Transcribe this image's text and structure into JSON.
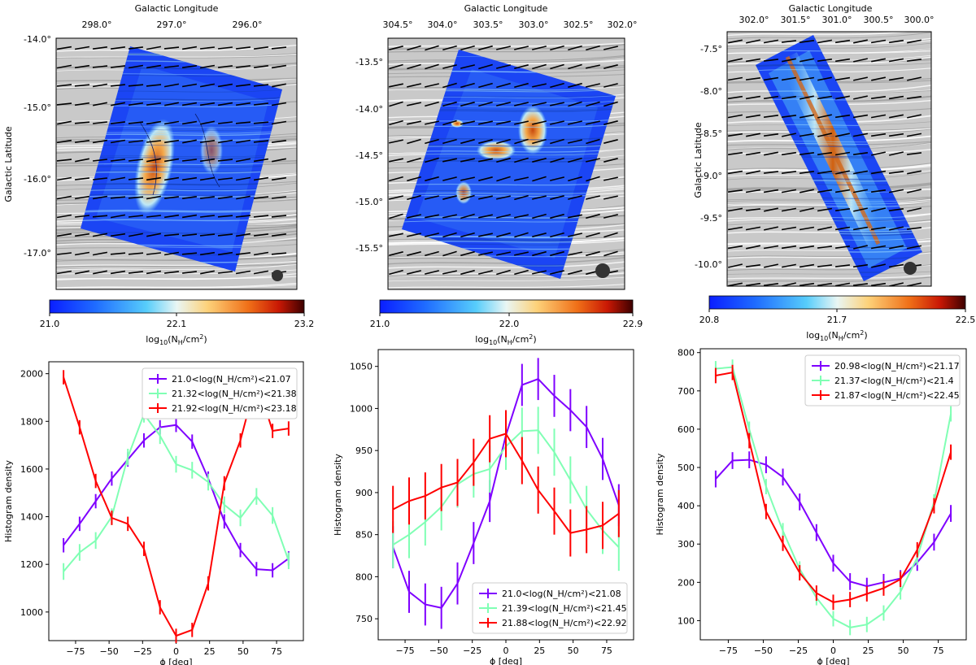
{
  "chart_data": [
    {
      "type": "heatmap",
      "panel": "map-1",
      "xlabel": "Galactic Longitude",
      "ylabel": "Galactic Latitude",
      "xticks": [
        "298.0°",
        "297.0°",
        "296.0°"
      ],
      "yticks": [
        "-14.0°",
        "-15.0°",
        "-16.0°",
        "-17.0°"
      ],
      "colorbar": {
        "label": "log$_{10}$(N$_H$/cm$^2$)",
        "label_main": "log",
        "label_sub1": "10",
        "label_mid": "(N",
        "label_sub2": "H",
        "label_end": "/cm",
        "label_sup": "2",
        "label_close": ")",
        "min": 21.0,
        "mid": 22.1,
        "max": 23.2,
        "ticks": [
          "21.0",
          "22.1",
          "23.2"
        ]
      }
    },
    {
      "type": "heatmap",
      "panel": "map-2",
      "xlabel": "Galactic Longitude",
      "ylabel": "",
      "xticks": [
        "304.5°",
        "304.0°",
        "303.5°",
        "303.0°",
        "302.5°",
        "302.0°"
      ],
      "yticks": [
        "-13.5°",
        "-14.0°",
        "-14.5°",
        "-15.0°",
        "-15.5°"
      ],
      "colorbar": {
        "min": 21.0,
        "mid": 22.0,
        "max": 22.9,
        "ticks": [
          "21.0",
          "22.0",
          "22.9"
        ]
      }
    },
    {
      "type": "heatmap",
      "panel": "map-3",
      "xlabel": "Galactic Longitude",
      "ylabel": "Galactic Latitude",
      "xticks": [
        "302.0°",
        "301.5°",
        "301.0°",
        "300.5°",
        "300.0°"
      ],
      "yticks": [
        "-7.5°",
        "-8.0°",
        "-8.5°",
        "-9.0°",
        "-9.5°",
        "-10.0°"
      ],
      "colorbar": {
        "min": 20.8,
        "mid": 21.7,
        "max": 22.5,
        "ticks": [
          "20.8",
          "21.7",
          "22.5"
        ]
      }
    },
    {
      "type": "line",
      "panel": "hist-1",
      "xlabel": "ϕ [deg]",
      "ylabel": "Histogram density",
      "xlim": [
        -95,
        95
      ],
      "ylim": [
        880,
        2050
      ],
      "xticks": [
        -75,
        -50,
        -25,
        0,
        25,
        50,
        75
      ],
      "yticks": [
        1000,
        1200,
        1400,
        1600,
        1800,
        2000
      ],
      "x": [
        -84,
        -72,
        -60,
        -48,
        -36,
        -24,
        -12,
        0,
        12,
        24,
        36,
        48,
        60,
        72,
        84
      ],
      "legend": "top-right",
      "series": [
        {
          "name": "21.0<log(N_H/cm²)<21.07",
          "values": [
            1280,
            1370,
            1465,
            1560,
            1640,
            1720,
            1775,
            1785,
            1715,
            1560,
            1380,
            1260,
            1180,
            1175,
            1225
          ],
          "err": 30,
          "color": "#7f00ff"
        },
        {
          "name": "21.32<log(N_H/cm²)<21.38",
          "values": [
            1170,
            1250,
            1300,
            1400,
            1650,
            1830,
            1740,
            1620,
            1595,
            1545,
            1450,
            1395,
            1485,
            1405,
            1215
          ],
          "err": 35,
          "color": "#80ffb4"
        },
        {
          "name": "21.92<log(N_H/cm²)<23.18",
          "values": [
            1985,
            1775,
            1550,
            1395,
            1370,
            1265,
            1020,
            900,
            925,
            1120,
            1540,
            1720,
            1975,
            1760,
            1770
          ],
          "err": 30,
          "color": "#ff0000"
        }
      ]
    },
    {
      "type": "line",
      "panel": "hist-2",
      "xlabel": "ϕ [deg]",
      "ylabel": "Histogram density",
      "xlim": [
        -95,
        95
      ],
      "ylim": [
        725,
        1070
      ],
      "xticks": [
        -75,
        -50,
        -25,
        0,
        25,
        50,
        75
      ],
      "yticks": [
        750,
        800,
        850,
        900,
        950,
        1000,
        1050
      ],
      "x": [
        -84,
        -72,
        -60,
        -48,
        -36,
        -24,
        -12,
        0,
        12,
        24,
        36,
        48,
        60,
        72,
        84
      ],
      "legend": "lower-right",
      "series": [
        {
          "name": "21.0<log(N_H/cm²)<21.08",
          "values": [
            835,
            782,
            767,
            763,
            792,
            840,
            890,
            968,
            1028,
            1035,
            1015,
            998,
            978,
            940,
            885
          ],
          "err": 25,
          "color": "#7f00ff"
        },
        {
          "name": "21.39<log(N_H/cm²)<21.45",
          "values": [
            838,
            850,
            865,
            883,
            910,
            922,
            928,
            955,
            973,
            974,
            948,
            915,
            880,
            855,
            835
          ],
          "err": 28,
          "color": "#80ffb4"
        },
        {
          "name": "21.88<log(N_H/cm²)<22.92",
          "values": [
            880,
            890,
            896,
            906,
            912,
            936,
            964,
            970,
            938,
            903,
            878,
            852,
            856,
            861,
            875
          ],
          "err": 28,
          "color": "#ff0000"
        }
      ]
    },
    {
      "type": "line",
      "panel": "hist-3",
      "xlabel": "ϕ [deg]",
      "ylabel": "Histogram density",
      "xlim": [
        -95,
        95
      ],
      "ylim": [
        50,
        810
      ],
      "xticks": [
        -75,
        -50,
        -25,
        0,
        25,
        50,
        75
      ],
      "yticks": [
        100,
        200,
        300,
        400,
        500,
        600,
        700,
        800
      ],
      "x": [
        -84,
        -72,
        -60,
        -48,
        -36,
        -24,
        -12,
        0,
        12,
        24,
        36,
        48,
        60,
        72,
        84
      ],
      "legend": "top-right",
      "series": [
        {
          "name": "20.98<log(N_H/cm²)<21.17",
          "values": [
            470,
            518,
            520,
            507,
            475,
            410,
            330,
            250,
            202,
            190,
            200,
            210,
            252,
            305,
            380
          ],
          "err": 22,
          "color": "#7f00ff"
        },
        {
          "name": "21.37<log(N_H/cm²)<21.4",
          "values": [
            758,
            762,
            600,
            450,
            335,
            235,
            160,
            105,
            82,
            90,
            120,
            175,
            265,
            410,
            640
          ],
          "err": 20,
          "color": "#80ffb4"
        },
        {
          "name": "21.87<log(N_H/cm²)<22.45",
          "values": [
            740,
            748,
            570,
            385,
            302,
            225,
            172,
            148,
            155,
            170,
            185,
            208,
            285,
            400,
            540
          ],
          "err": 20,
          "color": "#ff0000"
        }
      ]
    }
  ]
}
